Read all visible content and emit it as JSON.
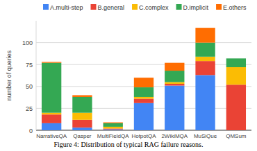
{
  "chart_data": {
    "type": "bar",
    "stacked": true,
    "grid": true,
    "legend": "top",
    "ylabel": "number of queries",
    "caption": "Figure 4: Distribution of typical RAG failure reasons.",
    "categories": [
      "NarrativeQA",
      "Qasper",
      "MultiFieldQA",
      "HotpotQA",
      "2WikiMQA",
      "MuSiQue",
      "QMSum"
    ],
    "series": [
      {
        "name": "A.multi-step",
        "color": "#4285f4",
        "values": [
          8,
          3,
          1,
          31,
          51,
          63,
          0
        ]
      },
      {
        "name": "B.general",
        "color": "#ea4335",
        "values": [
          10,
          9,
          1,
          5,
          2,
          16,
          52
        ]
      },
      {
        "name": "C.complex",
        "color": "#fbbc04",
        "values": [
          2,
          8,
          2,
          2,
          2,
          5,
          20
        ]
      },
      {
        "name": "D.implicit",
        "color": "#34a853",
        "values": [
          57,
          18,
          4,
          11,
          13,
          16,
          10
        ]
      },
      {
        "name": "E.others",
        "color": "#ff6d01",
        "values": [
          1,
          2,
          1,
          11,
          9,
          17,
          0
        ]
      }
    ],
    "ylim": [
      0,
      125
    ],
    "yticks": [
      0,
      25,
      50,
      75,
      100
    ]
  }
}
